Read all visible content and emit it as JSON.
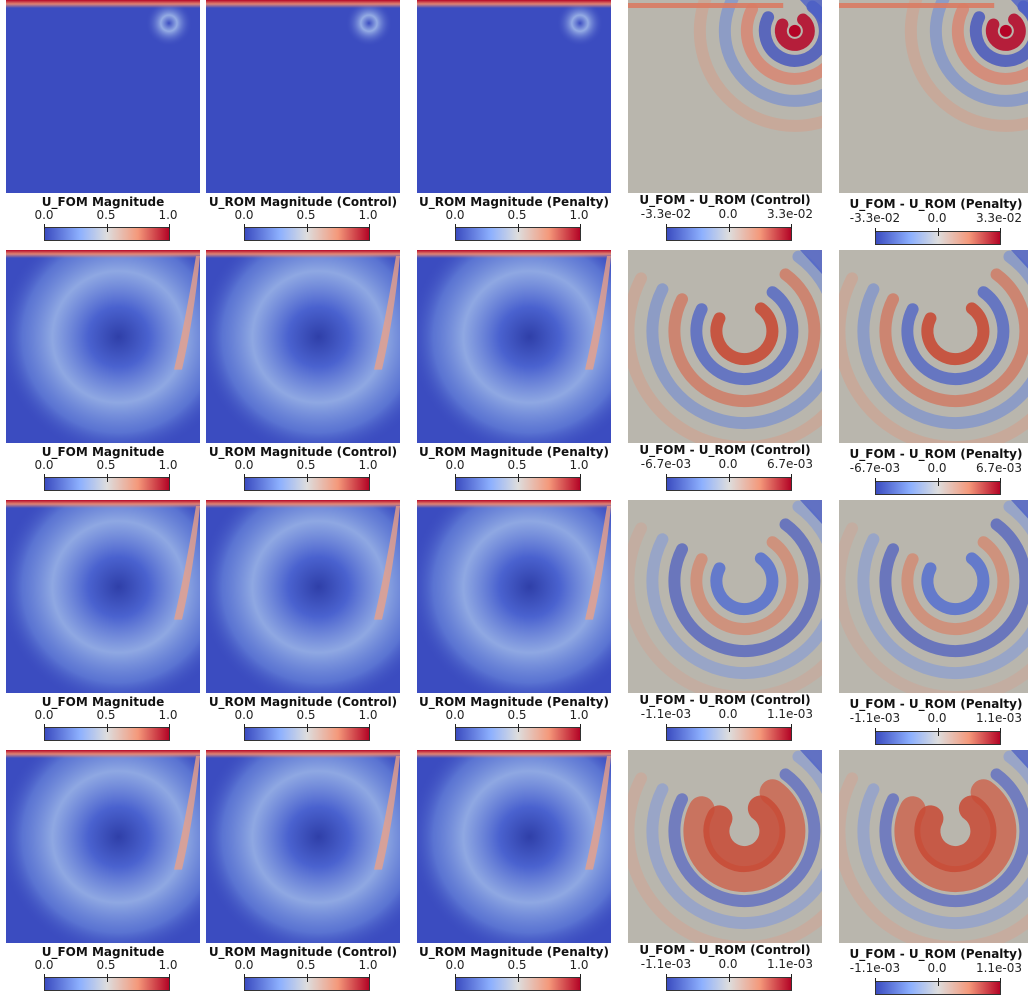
{
  "rows": [
    {
      "panels": [
        {
          "type": "mag",
          "title": "U_FOM Magnitude",
          "ticks": [
            "0.0",
            "0.5",
            "1.0"
          ]
        },
        {
          "type": "mag",
          "title": "U_ROM  Magnitude (Control)",
          "ticks": [
            "0.0",
            "0.5",
            "1.0"
          ]
        },
        {
          "type": "mag",
          "title": "U_ROM Magnitude (Penalty)",
          "ticks": [
            "0.0",
            "0.5",
            "1.0"
          ]
        },
        {
          "type": "diff",
          "title": "U_FOM - U_ROM (Control)",
          "ticks": [
            "-3.3e-02",
            "0.0",
            "3.3e-02"
          ]
        },
        {
          "type": "diff",
          "title": "U_FOM - U_ROM (Penalty)",
          "ticks": [
            "-3.3e-02",
            "0.0",
            "3.3e-02"
          ]
        }
      ]
    },
    {
      "panels": [
        {
          "type": "mag",
          "title": "U_FOM Magnitude",
          "ticks": [
            "0.0",
            "0.5",
            "1.0"
          ]
        },
        {
          "type": "mag",
          "title": "U_ROM  Magnitude (Control)",
          "ticks": [
            "0.0",
            "0.5",
            "1.0"
          ]
        },
        {
          "type": "mag",
          "title": "U_ROM Magnitude (Penalty)",
          "ticks": [
            "0.0",
            "0.5",
            "1.0"
          ]
        },
        {
          "type": "diff",
          "title": "U_FOM - U_ROM (Control)",
          "ticks": [
            "-6.7e-03",
            "0.0",
            "6.7e-03"
          ]
        },
        {
          "type": "diff",
          "title": "U_FOM - U_ROM (Penalty)",
          "ticks": [
            "-6.7e-03",
            "0.0",
            "6.7e-03"
          ]
        }
      ]
    },
    {
      "panels": [
        {
          "type": "mag",
          "title": "U_FOM Magnitude",
          "ticks": [
            "0.0",
            "0.5",
            "1.0"
          ]
        },
        {
          "type": "mag",
          "title": "U_ROM  Magnitude (Control)",
          "ticks": [
            "0.0",
            "0.5",
            "1.0"
          ]
        },
        {
          "type": "mag",
          "title": "U_ROM Magnitude (Penalty)",
          "ticks": [
            "0.0",
            "0.5",
            "1.0"
          ]
        },
        {
          "type": "diff",
          "title": "U_FOM - U_ROM (Control)",
          "ticks": [
            "-1.1e-03",
            "0.0",
            "1.1e-03"
          ]
        },
        {
          "type": "diff",
          "title": "U_FOM - U_ROM (Penalty)",
          "ticks": [
            "-1.1e-03",
            "0.0",
            "1.1e-03"
          ]
        }
      ]
    },
    {
      "panels": [
        {
          "type": "mag",
          "title": "U_FOM Magnitude",
          "ticks": [
            "0.0",
            "0.5",
            "1.0"
          ]
        },
        {
          "type": "mag",
          "title": "U_ROM  Magnitude (Control)",
          "ticks": [
            "0.0",
            "0.5",
            "1.0"
          ]
        },
        {
          "type": "mag",
          "title": "U_ROM Magnitude (Penalty)",
          "ticks": [
            "0.0",
            "0.5",
            "1.0"
          ]
        },
        {
          "type": "diff",
          "title": "U_FOM - U_ROM (Control)",
          "ticks": [
            "-1.1e-03",
            "0.0",
            "1.1e-03"
          ]
        },
        {
          "type": "diff",
          "title": "U_FOM - U_ROM (Penalty)",
          "ticks": [
            "-1.1e-03",
            "0.0",
            "1.1e-03"
          ]
        }
      ]
    }
  ],
  "colors": {
    "cold": "#3b4cc0",
    "neutral": "#b9b6ad",
    "warm": "#b40426"
  }
}
